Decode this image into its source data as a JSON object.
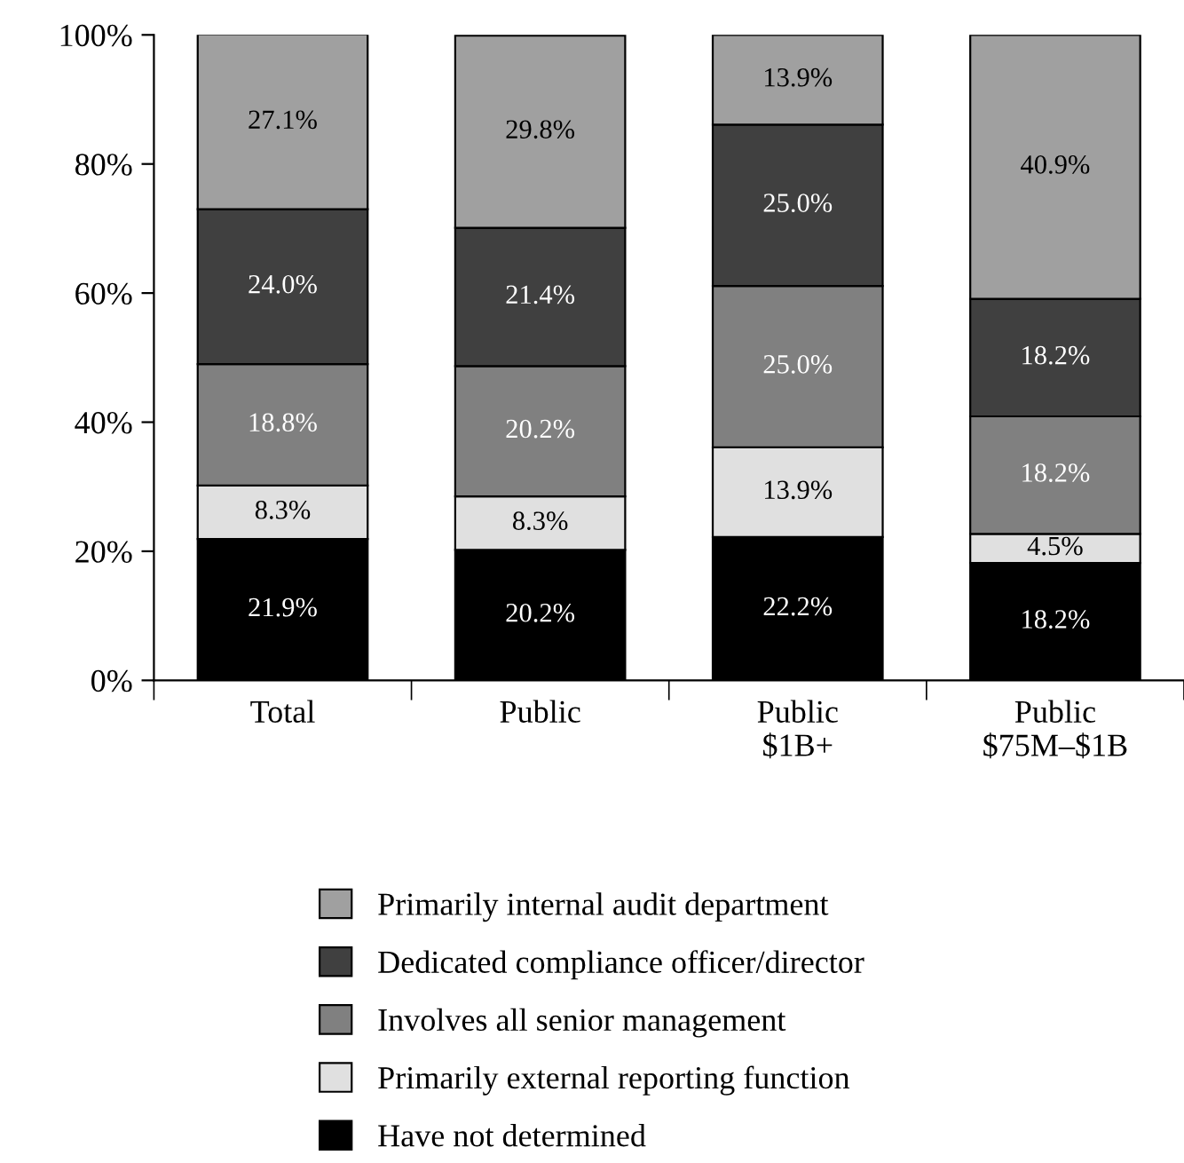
{
  "chart_data": {
    "type": "bar",
    "stacked": true,
    "data_labels": true,
    "legend": "bottom",
    "grid": false,
    "categories": [
      "Total",
      "Public",
      "Public\n$1B+",
      "Public\n$75M–$1B"
    ],
    "series": [
      {
        "name": "Have not determined",
        "color": "#000000",
        "values": [
          21.9,
          20.2,
          22.2,
          18.2
        ],
        "value_labels": [
          "21.9%",
          "20.2%",
          "22.2%",
          "18.2%"
        ]
      },
      {
        "name": "Primarily external reporting function",
        "color": "#e0e0e0",
        "values": [
          8.3,
          8.3,
          13.9,
          4.5
        ],
        "value_labels": [
          "8.3%",
          "8.3%",
          "13.9%",
          "4.5%"
        ]
      },
      {
        "name": "Involves all senior management",
        "color": "#808080",
        "values": [
          18.8,
          20.2,
          25.0,
          18.2
        ],
        "value_labels": [
          "18.8%",
          "20.2%",
          "25.0%",
          "18.2%"
        ]
      },
      {
        "name": "Dedicated compliance officer/director",
        "color": "#404040",
        "values": [
          24.0,
          21.4,
          25.0,
          18.2
        ],
        "value_labels": [
          "24.0%",
          "21.4%",
          "25.0%",
          "18.2%"
        ]
      },
      {
        "name": "Primarily internal audit department",
        "color": "#a0a0a0",
        "values": [
          27.1,
          29.8,
          13.9,
          40.9
        ],
        "value_labels": [
          "27.1%",
          "29.8%",
          "13.9%",
          "40.9%"
        ]
      }
    ],
    "ylim": [
      0,
      100
    ],
    "yticks": [
      {
        "value": 0,
        "label": "0%"
      },
      {
        "value": 20,
        "label": "20%"
      },
      {
        "value": 40,
        "label": "40%"
      },
      {
        "value": 60,
        "label": "60%"
      },
      {
        "value": 80,
        "label": "80%"
      },
      {
        "value": 100,
        "label": "100%"
      }
    ]
  }
}
